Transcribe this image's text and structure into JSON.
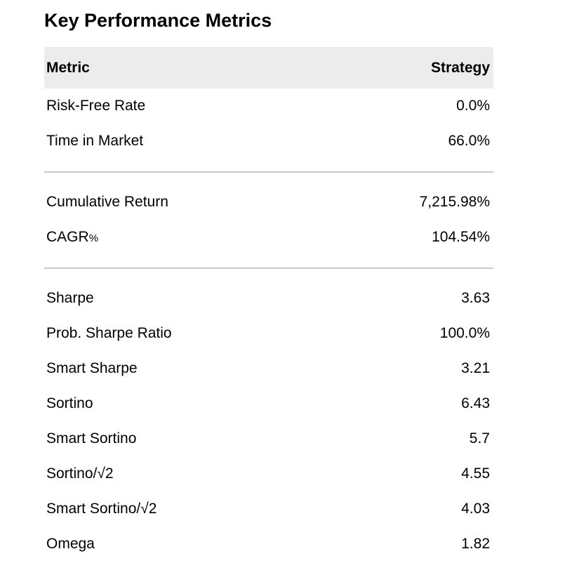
{
  "page": {
    "title": "Key Performance Metrics"
  },
  "table": {
    "headers": {
      "metric": "Metric",
      "value": "Strategy"
    },
    "rows": [
      {
        "metric": "Risk-Free Rate",
        "value": "0.0%"
      },
      {
        "metric": "Time in Market",
        "value": "66.0%"
      },
      {
        "metric": "Cumulative Return",
        "value": "7,215.98%"
      },
      {
        "metric": "CAGR",
        "metric_suffix": "%",
        "value": "104.54%"
      },
      {
        "metric": "Sharpe",
        "value": "3.63"
      },
      {
        "metric": "Prob. Sharpe Ratio",
        "value": "100.0%"
      },
      {
        "metric": "Smart Sharpe",
        "value": "3.21"
      },
      {
        "metric": "Sortino",
        "value": "6.43"
      },
      {
        "metric": "Smart Sortino",
        "value": "5.7"
      },
      {
        "metric": "Sortino/√2",
        "value": "4.55"
      },
      {
        "metric": "Smart Sortino/√2",
        "value": "4.03"
      },
      {
        "metric": "Omega",
        "value": "1.82"
      }
    ]
  },
  "colors": {
    "header_background": "#ececec",
    "divider": "#c9c9c9",
    "text": "#000000",
    "page_background": "#ffffff"
  },
  "chart_data": {
    "type": "table",
    "title": "Key Performance Metrics",
    "columns": [
      "Metric",
      "Strategy"
    ],
    "rows": [
      [
        "Risk-Free Rate",
        "0.0%"
      ],
      [
        "Time in Market",
        "66.0%"
      ],
      [
        "Cumulative Return",
        "7,215.98%"
      ],
      [
        "CAGR%",
        "104.54%"
      ],
      [
        "Sharpe",
        "3.63"
      ],
      [
        "Prob. Sharpe Ratio",
        "100.0%"
      ],
      [
        "Smart Sharpe",
        "3.21"
      ],
      [
        "Sortino",
        "6.43"
      ],
      [
        "Smart Sortino",
        "5.7"
      ],
      [
        "Sortino/√2",
        "4.55"
      ],
      [
        "Smart Sortino/√2",
        "4.03"
      ],
      [
        "Omega",
        "1.82"
      ]
    ],
    "section_breaks_after_rows": [
      1,
      3
    ],
    "header_row_shaded": true
  }
}
